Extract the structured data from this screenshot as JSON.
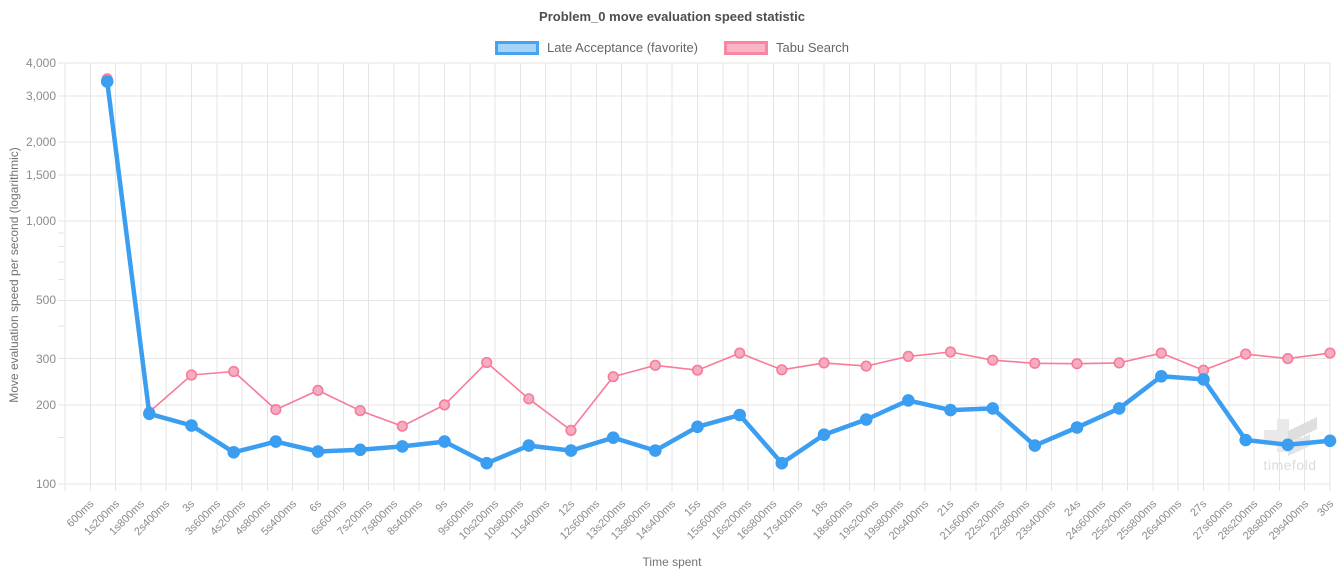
{
  "title": "Problem_0 move evaluation speed statistic",
  "legend": {
    "items": [
      {
        "label": "Late Acceptance (favorite)",
        "border": "#45a3f1",
        "fill": "#a6d3f8"
      },
      {
        "label": "Tabu Search",
        "border": "#f8879f",
        "fill": "#f9b4c6"
      }
    ]
  },
  "axes": {
    "x_title": "Time spent",
    "y_title": "Move evaluation speed per second (logarithmic)",
    "y_tick_labels": [
      "4,000",
      "3,000",
      "2,000",
      "1,500",
      "1,000",
      "500",
      "300",
      "200",
      "100"
    ],
    "x_tick_labels": [
      "600ms",
      "1s200ms",
      "1s800ms",
      "2s400ms",
      "3s",
      "3s600ms",
      "4s200ms",
      "4s800ms",
      "5s400ms",
      "6s",
      "6s600ms",
      "7s200ms",
      "7s800ms",
      "8s400ms",
      "9s",
      "9s600ms",
      "10s200ms",
      "10s800ms",
      "11s400ms",
      "12s",
      "12s600ms",
      "13s200ms",
      "13s800ms",
      "14s400ms",
      "15s",
      "15s600ms",
      "16s200ms",
      "16s800ms",
      "17s400ms",
      "18s",
      "18s600ms",
      "19s200ms",
      "19s800ms",
      "20s400ms",
      "21s",
      "21s600ms",
      "22s200ms",
      "22s800ms",
      "23s400ms",
      "24s",
      "24s600ms",
      "25s200ms",
      "25s800ms",
      "26s400ms",
      "27s",
      "27s600ms",
      "28s200ms",
      "28s800ms",
      "29s400ms",
      "30s"
    ]
  },
  "watermark": {
    "text": "timefold"
  },
  "chart_data": {
    "type": "line",
    "title": "Problem_0 move evaluation speed statistic",
    "xlabel": "Time spent",
    "ylabel": "Move evaluation speed per second (logarithmic)",
    "y_scale": "log",
    "ylim": [
      100,
      4000
    ],
    "xlim_seconds": [
      0,
      30
    ],
    "x_gridline_interval_ms": 600,
    "y_ticks_major": [
      4000,
      3000,
      2000,
      1500,
      1000,
      500,
      300,
      200,
      100
    ],
    "y_ticks_minor": [
      900,
      800,
      700,
      600,
      400,
      150
    ],
    "grid": true,
    "legend_position": "top",
    "x_seconds": [
      1,
      2,
      3,
      4,
      5,
      6,
      7,
      8,
      9,
      10,
      11,
      12,
      13,
      14,
      15,
      16,
      17,
      18,
      19,
      20,
      21,
      22,
      23,
      24,
      25,
      26,
      27,
      28,
      29,
      30
    ],
    "series": [
      {
        "name": "Tabu Search",
        "line_color": "#f87b98",
        "point_fill": "#f5aec1",
        "line_width": 1.6,
        "point_radius": 4.8,
        "values": [
          3480,
          188,
          260,
          268,
          192,
          227,
          190,
          166,
          200,
          290,
          211,
          160,
          256,
          283,
          271,
          315,
          272,
          289,
          281,
          306,
          318,
          296,
          288,
          287,
          289,
          315,
          271,
          312,
          300,
          315
        ]
      },
      {
        "name": "Late Acceptance (favorite)",
        "line_color": "#3b9ef0",
        "point_fill": "#3b9ef0",
        "line_width": 4.5,
        "point_radius": 5.5,
        "values": [
          3400,
          185,
          167,
          132,
          145,
          133,
          135,
          139,
          145,
          120,
          140,
          134,
          150,
          134,
          165,
          183,
          120,
          154,
          176,
          208,
          191,
          194,
          140,
          164,
          194,
          257,
          250,
          147,
          141,
          146
        ]
      }
    ]
  }
}
